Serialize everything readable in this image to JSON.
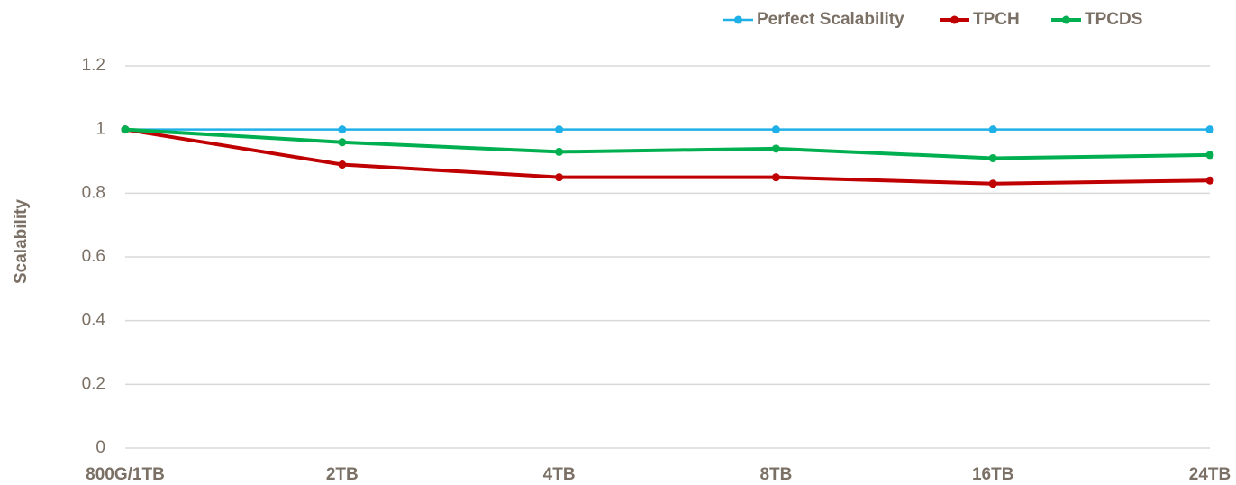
{
  "chart_data": {
    "type": "line",
    "y_label": "Scalability",
    "categories": [
      "800G/1TB",
      "2TB",
      "4TB",
      "8TB",
      "16TB",
      "24TB"
    ],
    "series": [
      {
        "name": "Perfect Scalability",
        "color": "#1fb0e8",
        "values": [
          1,
          1,
          1,
          1,
          1,
          1
        ]
      },
      {
        "name": "TPCH",
        "color": "#c00000",
        "values": [
          1,
          0.89,
          0.85,
          0.85,
          0.83,
          0.84
        ]
      },
      {
        "name": "TPCDS",
        "color": "#00b050",
        "values": [
          1,
          0.96,
          0.93,
          0.94,
          0.91,
          0.92
        ]
      }
    ],
    "ylim": [
      0,
      1.2
    ],
    "yticks": [
      0,
      0.2,
      0.4,
      0.6,
      0.8,
      1,
      1.2
    ],
    "grid": true,
    "legend": "top-right"
  }
}
